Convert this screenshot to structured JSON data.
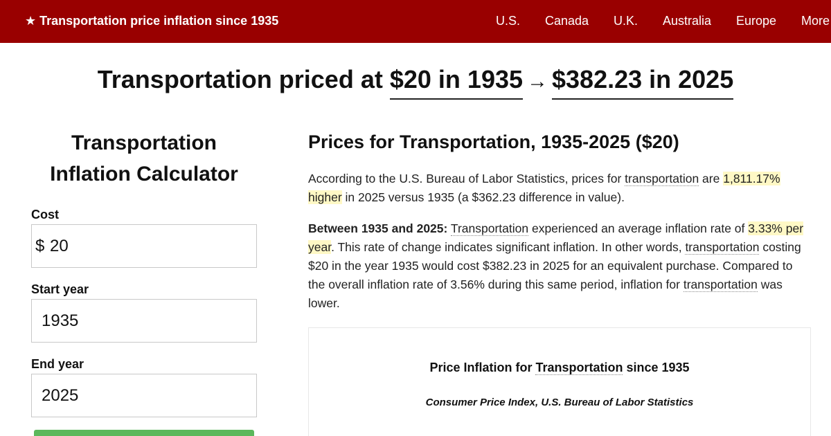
{
  "nav": {
    "brand": "★ Transportation price inflation since 1935",
    "links": [
      "U.S.",
      "Canada",
      "U.K.",
      "Australia",
      "Europe",
      "More"
    ]
  },
  "headline": {
    "prefix": "Transportation priced at",
    "start": "$20 in 1935",
    "arrow": "→",
    "end": "$382.23 in 2025"
  },
  "calculator": {
    "title_line1": "Transportation",
    "title_line2": "Inflation Calculator",
    "cost_label": "Cost",
    "cost_prefix": "$",
    "cost_value": "20",
    "start_label": "Start year",
    "start_value": "1935",
    "end_label": "End year",
    "end_value": "2025"
  },
  "main": {
    "heading": "Prices for Transportation, 1935-2025 ($20)",
    "p1": {
      "t1": "According to the U.S. Bureau of Labor Statistics, prices for ",
      "term": "transportation",
      "t2": " are ",
      "hl": "1,811.17% higher",
      "t3": " in 2025 versus 1935 (a $362.23 difference in value)."
    },
    "p2": {
      "bold": "Between 1935 and 2025:",
      "term1": "Transportation",
      "t1": " experienced an average inflation rate of ",
      "hl": "3.33% per year",
      "t2": ". This rate of change indicates significant inflation. In other words, ",
      "term2": "transportation",
      "t3": " costing $20 in the year 1935 would cost $382.23 in 2025 for an equivalent purchase. Compared to the overall inflation rate of 3.56% during this same period, inflation for ",
      "term3": "transportation",
      "t4": " was lower."
    }
  },
  "chart": {
    "title_pre": "Price Inflation for ",
    "title_term": "Transportation",
    "title_post": " since 1935",
    "subtitle": "Consumer Price Index, U.S. Bureau of Labor Statistics"
  },
  "colors": {
    "navbar": "#990000",
    "highlight": "#fff8c5",
    "button": "#5cb85c"
  }
}
